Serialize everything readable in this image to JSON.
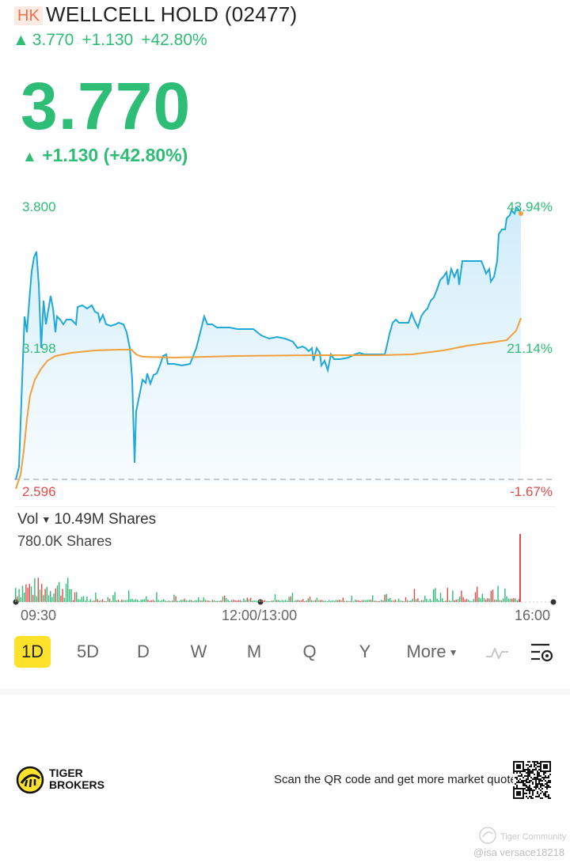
{
  "header": {
    "market": "HK",
    "title": "WELLCELL HOLD (02477)",
    "price": "3.770",
    "change": "+1.130",
    "change_pct": "+42.80%"
  },
  "quote": {
    "price": "3.770",
    "change_line": "+1.130 (+42.80%)",
    "up_arrow": "▲"
  },
  "chart": {
    "y_high": "3.800",
    "y_mid": "3.198",
    "y_low": "2.596",
    "pct_high": "43.94%",
    "pct_mid": "21.14%",
    "pct_low": "-1.67%",
    "colors": {
      "price_line": "#1fa8d8",
      "avg_line": "#f0a03c",
      "area": "#d5effa",
      "up": "#2dbd76",
      "down": "#e04c4c"
    }
  },
  "volume": {
    "label": "Vol",
    "total": "10.49M Shares",
    "max": "780.0K Shares"
  },
  "time_axis": {
    "start": "09:30",
    "mid": "12:00/13:00",
    "end": "16:00"
  },
  "tabs": [
    {
      "label": "1D",
      "active": true
    },
    {
      "label": "5D"
    },
    {
      "label": "D"
    },
    {
      "label": "W"
    },
    {
      "label": "M"
    },
    {
      "label": "Q"
    },
    {
      "label": "Y"
    },
    {
      "label": "More"
    }
  ],
  "icons": {
    "indicator": "line-indicator-icon",
    "settings": "chart-settings-icon"
  },
  "footer": {
    "brand_line1": "TIGER",
    "brand_line2": "BROKERS",
    "qr_text": "Scan the QR code and get more market quotes",
    "watermark_brand": "Tiger Community",
    "watermark_user": "@isa versace18218"
  }
}
